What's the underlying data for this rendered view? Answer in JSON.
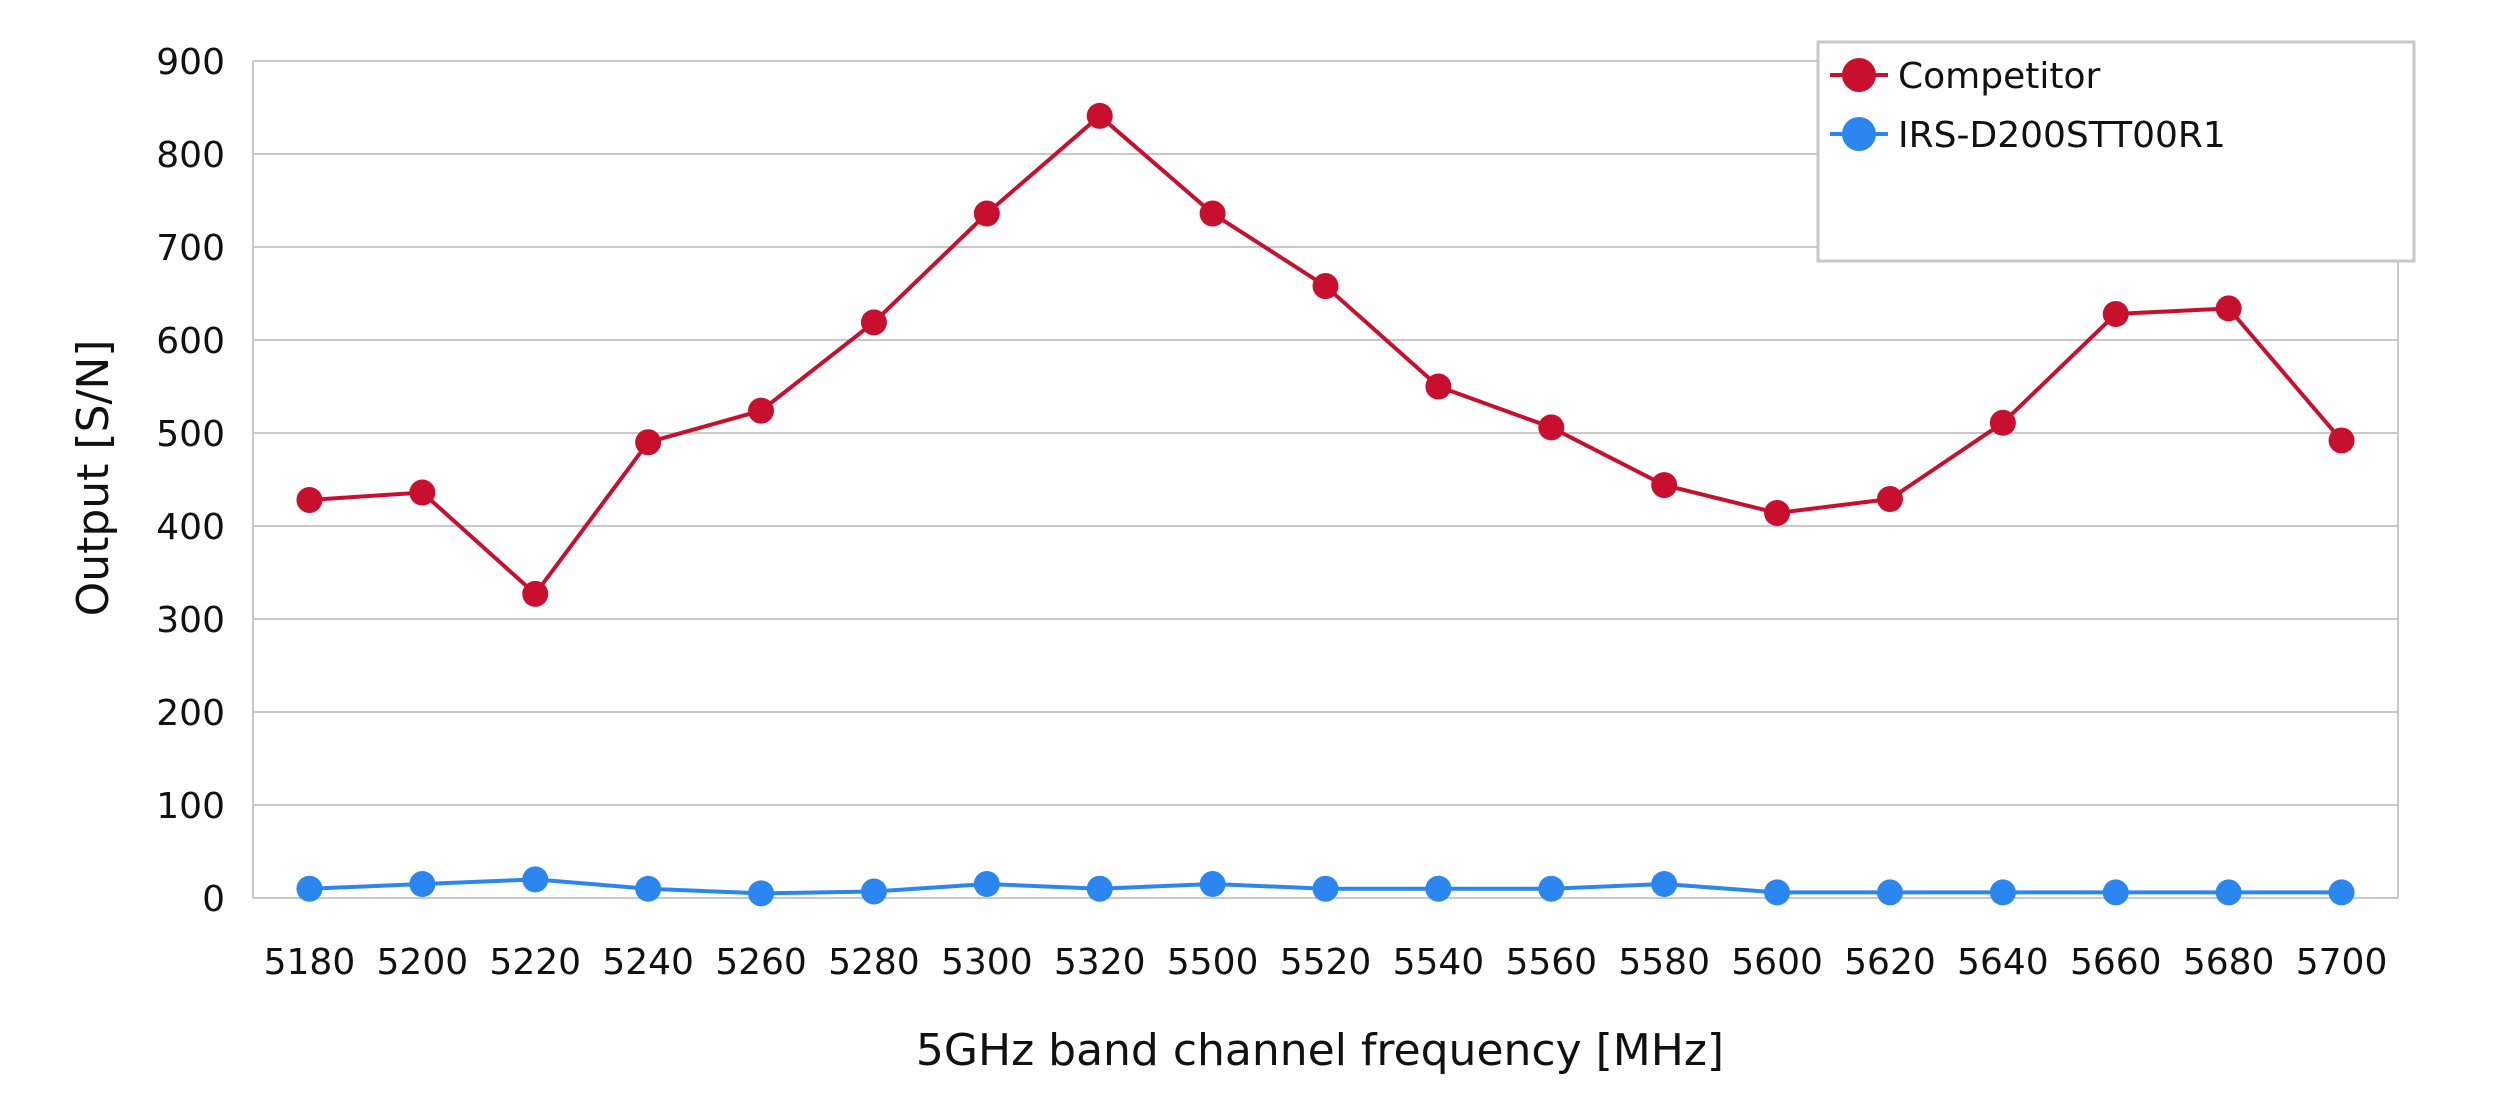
{
  "chart_data": {
    "type": "line",
    "xlabel": "5GHz band channel frequency [MHz]",
    "ylabel": "Output [S/N]",
    "categories": [
      "5180",
      "5200",
      "5220",
      "5240",
      "5260",
      "5280",
      "5300",
      "5320",
      "5500",
      "5520",
      "5540",
      "5560",
      "5580",
      "5600",
      "5620",
      "5640",
      "5660",
      "5680",
      "5700"
    ],
    "y_ticks": [
      "0",
      "100",
      "200",
      "300",
      "400",
      "500",
      "600",
      "700",
      "800",
      "900"
    ],
    "ylim": [
      0,
      900
    ],
    "grid": "horizontal",
    "legend_position": "top-right",
    "series": [
      {
        "name": "Competitor",
        "color": "#c8102e",
        "values": [
          428,
          436,
          327,
          490,
          524,
          619,
          736,
          841,
          736,
          658,
          550,
          506,
          444,
          414,
          429,
          511,
          628,
          634,
          492
        ]
      },
      {
        "name": "IRS-D200STT00R1",
        "color": "#2b86f0",
        "values": [
          10,
          15,
          20,
          10,
          5,
          7,
          15,
          10,
          15,
          10,
          10,
          10,
          15,
          6,
          6,
          6,
          6,
          6,
          6
        ]
      }
    ]
  }
}
